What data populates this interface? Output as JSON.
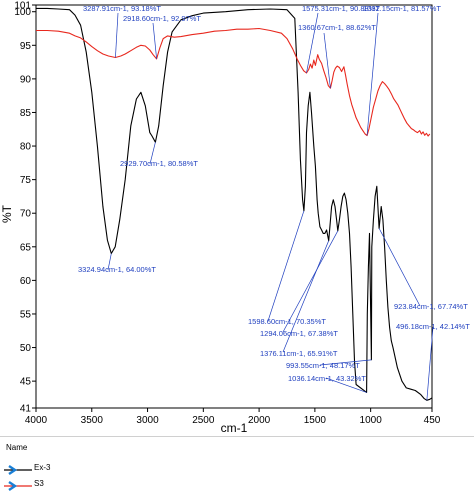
{
  "chart_data": {
    "type": "line",
    "xlabel": "cm-1",
    "ylabel": "%T",
    "xlim": [
      4000,
      450
    ],
    "ylim": [
      41,
      101
    ],
    "x_ticks": [
      4000,
      3500,
      3000,
      2500,
      2000,
      1500,
      1000,
      450
    ],
    "y_ticks": [
      41,
      45,
      50,
      55,
      60,
      65,
      70,
      75,
      80,
      85,
      90,
      95,
      100,
      101
    ],
    "grid": false,
    "series": [
      {
        "name": "Ex-3",
        "color": "#000000",
        "points": [
          [
            4000,
            100.5
          ],
          [
            3900,
            100.5
          ],
          [
            3800,
            100.4
          ],
          [
            3700,
            100.3
          ],
          [
            3650,
            99.5
          ],
          [
            3600,
            98
          ],
          [
            3550,
            94
          ],
          [
            3500,
            88
          ],
          [
            3450,
            80
          ],
          [
            3400,
            71
          ],
          [
            3360,
            66
          ],
          [
            3324.94,
            64.0
          ],
          [
            3290,
            65
          ],
          [
            3250,
            69
          ],
          [
            3200,
            75
          ],
          [
            3150,
            83
          ],
          [
            3100,
            87
          ],
          [
            3060,
            88
          ],
          [
            3020,
            86
          ],
          [
            2980,
            82
          ],
          [
            2960,
            81.5
          ],
          [
            2929.7,
            80.58
          ],
          [
            2900,
            83
          ],
          [
            2860,
            89
          ],
          [
            2820,
            94
          ],
          [
            2780,
            97
          ],
          [
            2700,
            98.8
          ],
          [
            2600,
            99.4
          ],
          [
            2500,
            99.8
          ],
          [
            2300,
            100
          ],
          [
            2100,
            100.3
          ],
          [
            1900,
            100.4
          ],
          [
            1750,
            100.3
          ],
          [
            1680,
            99
          ],
          [
            1650,
            88
          ],
          [
            1630,
            78
          ],
          [
            1610,
            72
          ],
          [
            1598.6,
            70.35
          ],
          [
            1585,
            74
          ],
          [
            1575,
            82
          ],
          [
            1560,
            86
          ],
          [
            1545,
            88
          ],
          [
            1530,
            85
          ],
          [
            1510,
            80
          ],
          [
            1495,
            77
          ],
          [
            1480,
            72
          ],
          [
            1470,
            70
          ],
          [
            1455,
            68
          ],
          [
            1440,
            67.5
          ],
          [
            1425,
            67
          ],
          [
            1410,
            67
          ],
          [
            1395,
            67.5
          ],
          [
            1376.11,
            65.91
          ],
          [
            1365,
            68
          ],
          [
            1350,
            71
          ],
          [
            1335,
            72
          ],
          [
            1320,
            71
          ],
          [
            1305,
            69
          ],
          [
            1294.06,
            67.38
          ],
          [
            1280,
            69
          ],
          [
            1265,
            71
          ],
          [
            1250,
            72.5
          ],
          [
            1235,
            73
          ],
          [
            1220,
            72
          ],
          [
            1205,
            70
          ],
          [
            1190,
            67
          ],
          [
            1175,
            62
          ],
          [
            1160,
            55
          ],
          [
            1145,
            48
          ],
          [
            1130,
            44.5
          ],
          [
            1036.14,
            43.32
          ],
          [
            1030,
            55
          ],
          [
            1020,
            62
          ],
          [
            1010,
            67
          ],
          [
            993.55,
            48.17
          ],
          [
            990,
            65
          ],
          [
            975,
            69
          ],
          [
            960,
            72.5
          ],
          [
            945,
            74
          ],
          [
            923.84,
            67.74
          ],
          [
            905,
            71
          ],
          [
            890,
            69
          ],
          [
            875,
            65
          ],
          [
            860,
            60
          ],
          [
            845,
            56
          ],
          [
            830,
            53
          ],
          [
            815,
            51
          ],
          [
            800,
            50
          ],
          [
            760,
            47
          ],
          [
            720,
            45
          ],
          [
            680,
            44
          ],
          [
            640,
            43.8
          ],
          [
            600,
            43.6
          ],
          [
            550,
            43
          ],
          [
            520,
            42.4
          ],
          [
            496.18,
            42.14
          ],
          [
            470,
            42.3
          ],
          [
            450,
            42.5
          ]
        ]
      },
      {
        "name": "S3",
        "color": "#e8281e",
        "points": [
          [
            4000,
            97.2
          ],
          [
            3900,
            97.2
          ],
          [
            3800,
            97.1
          ],
          [
            3700,
            96.8
          ],
          [
            3650,
            96.4
          ],
          [
            3600,
            96.1
          ],
          [
            3550,
            95.5
          ],
          [
            3500,
            94.8
          ],
          [
            3450,
            94.2
          ],
          [
            3400,
            93.7
          ],
          [
            3350,
            93.4
          ],
          [
            3287.91,
            93.18
          ],
          [
            3240,
            93.4
          ],
          [
            3200,
            93.7
          ],
          [
            3150,
            94.2
          ],
          [
            3100,
            94.7
          ],
          [
            3060,
            95.0
          ],
          [
            3020,
            94.9
          ],
          [
            2980,
            94.3
          ],
          [
            2950,
            93.6
          ],
          [
            2918.6,
            92.97
          ],
          [
            2890,
            94.6
          ],
          [
            2860,
            96.0
          ],
          [
            2820,
            96.4
          ],
          [
            2760,
            96.2
          ],
          [
            2700,
            96.3
          ],
          [
            2600,
            96.6
          ],
          [
            2500,
            96.8
          ],
          [
            2400,
            97.1
          ],
          [
            2300,
            97.2
          ],
          [
            2200,
            97.4
          ],
          [
            2100,
            97.4
          ],
          [
            2000,
            97.5
          ],
          [
            1900,
            97.2
          ],
          [
            1800,
            96.8
          ],
          [
            1750,
            96.0
          ],
          [
            1700,
            94.5
          ],
          [
            1660,
            93.0
          ],
          [
            1630,
            92.0
          ],
          [
            1600,
            91.2
          ],
          [
            1575.31,
            90.88
          ],
          [
            1555,
            91.4
          ],
          [
            1540,
            92.2
          ],
          [
            1525,
            91.6
          ],
          [
            1510,
            92.8
          ],
          [
            1495,
            92.0
          ],
          [
            1475,
            93.6
          ],
          [
            1460,
            92.9
          ],
          [
            1440,
            92.3
          ],
          [
            1420,
            91.2
          ],
          [
            1400,
            90.2
          ],
          [
            1380,
            89.0
          ],
          [
            1360.67,
            88.62
          ],
          [
            1345,
            89.8
          ],
          [
            1330,
            91.0
          ],
          [
            1315,
            91.6
          ],
          [
            1300,
            91.9
          ],
          [
            1280,
            91.7
          ],
          [
            1260,
            91.1
          ],
          [
            1240,
            91.8
          ],
          [
            1225,
            90.6
          ],
          [
            1210,
            89.2
          ],
          [
            1190,
            87.5
          ],
          [
            1170,
            86.2
          ],
          [
            1150,
            85.2
          ],
          [
            1130,
            84.2
          ],
          [
            1110,
            83.5
          ],
          [
            1090,
            82.8
          ],
          [
            1070,
            82.3
          ],
          [
            1050,
            81.8
          ],
          [
            1032.15,
            81.57
          ],
          [
            1015,
            82.6
          ],
          [
            995,
            84.2
          ],
          [
            975,
            85.8
          ],
          [
            955,
            87.0
          ],
          [
            935,
            88.2
          ],
          [
            915,
            89.0
          ],
          [
            895,
            89.6
          ],
          [
            875,
            89.3
          ],
          [
            855,
            88.9
          ],
          [
            835,
            88.4
          ],
          [
            815,
            87.8
          ],
          [
            795,
            87.1
          ],
          [
            775,
            86.6
          ],
          [
            755,
            86.1
          ],
          [
            735,
            85.4
          ],
          [
            715,
            84.7
          ],
          [
            695,
            84.0
          ],
          [
            675,
            83.4
          ],
          [
            655,
            83.0
          ],
          [
            635,
            82.6
          ],
          [
            615,
            82.4
          ],
          [
            600,
            82.2
          ],
          [
            580,
            82.0
          ],
          [
            560,
            82.3
          ],
          [
            545,
            81.8
          ],
          [
            530,
            82.1
          ],
          [
            515,
            81.6
          ],
          [
            500,
            81.9
          ],
          [
            485,
            81.5
          ],
          [
            470,
            81.8
          ]
        ]
      }
    ],
    "annotations": [
      {
        "text": "3287.91cm-1, 93.18%T",
        "x": 3287.91,
        "y": 93.18,
        "series": "S3"
      },
      {
        "text": "2918.60cm-1, 92.97%T",
        "x": 2918.6,
        "y": 92.97,
        "series": "S3"
      },
      {
        "text": "2929.70cm-1, 80.58%T",
        "x": 2929.7,
        "y": 80.58,
        "series": "Ex-3"
      },
      {
        "text": "3324.94cm-1, 64.00%T",
        "x": 3324.94,
        "y": 64.0,
        "series": "Ex-3"
      },
      {
        "text": "1575.31cm-1, 90.88%T",
        "x": 1575.31,
        "y": 90.88,
        "series": "S3"
      },
      {
        "text": "1360.67cm-1, 88.62%T",
        "x": 1360.67,
        "y": 88.62,
        "series": "S3"
      },
      {
        "text": "1032.15cm-1, 81.57%T",
        "x": 1032.15,
        "y": 81.57,
        "series": "S3"
      },
      {
        "text": "1598.60cm-1, 70.35%T",
        "x": 1598.6,
        "y": 70.35,
        "series": "Ex-3"
      },
      {
        "text": "1294.06cm-1, 67.38%T",
        "x": 1294.06,
        "y": 67.38,
        "series": "Ex-3"
      },
      {
        "text": "1376.11cm-1, 65.91%T",
        "x": 1376.11,
        "y": 65.91,
        "series": "Ex-3"
      },
      {
        "text": "993.55cm-1, 48.17%T",
        "x": 993.55,
        "y": 48.17,
        "series": "Ex-3"
      },
      {
        "text": "1036.14cm-1, 43.32%T",
        "x": 1036.14,
        "y": 43.32,
        "series": "Ex-3"
      },
      {
        "text": "923.84cm-1, 67.74%T",
        "x": 923.84,
        "y": 67.74,
        "series": "Ex-3"
      },
      {
        "text": "496.18cm-1, 42.14%T",
        "x": 496.18,
        "y": 42.14,
        "series": "Ex-3"
      }
    ],
    "legend": {
      "title": "Name",
      "placement": "bottom-left",
      "items": [
        "Ex-3",
        "S3"
      ]
    }
  }
}
